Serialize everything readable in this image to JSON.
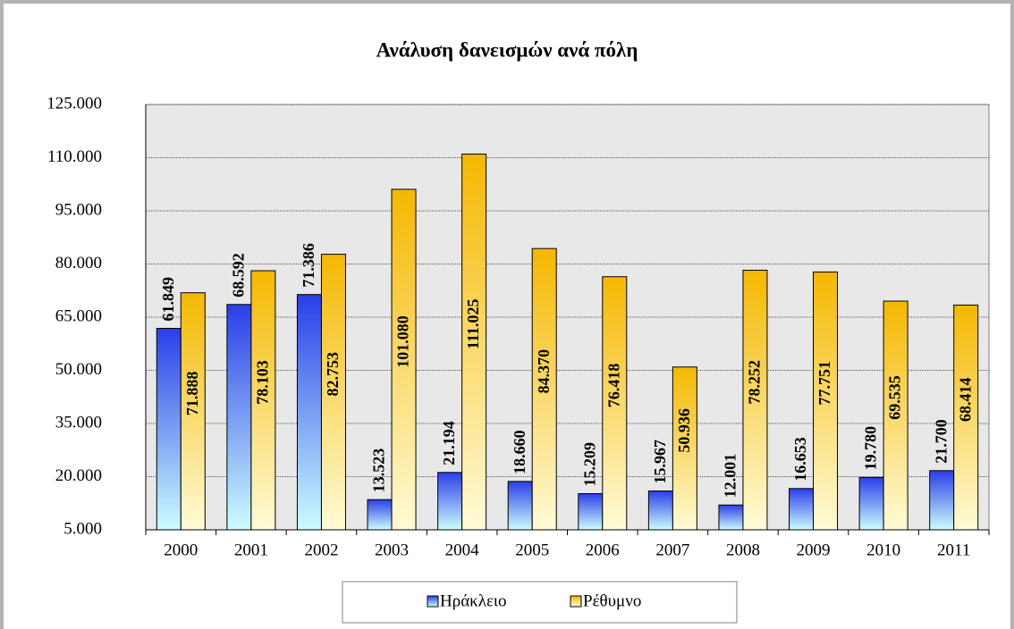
{
  "chart_data": {
    "type": "bar",
    "title": "Ανάλυση δανεισμών ανά πόλη",
    "categories": [
      "2000",
      "2001",
      "2002",
      "2003",
      "2004",
      "2005",
      "2006",
      "2007",
      "2008",
      "2009",
      "2010",
      "2011"
    ],
    "series": [
      {
        "name": "Ηράκλειο",
        "color": "#2a3ee8",
        "values": [
          61849,
          68592,
          71386,
          13523,
          21194,
          18660,
          15209,
          15967,
          12001,
          16653,
          19780,
          21700
        ],
        "value_labels": [
          "61.849",
          "68.592",
          "71.386",
          "13.523",
          "21.194",
          "18.660",
          "15.209",
          "15.967",
          "12.001",
          "16.653",
          "19.780",
          "21.700"
        ]
      },
      {
        "name": "Ρέθυμνο",
        "color": "#f5b800",
        "values": [
          71888,
          78103,
          82753,
          101080,
          111025,
          84370,
          76418,
          50936,
          78252,
          77751,
          69535,
          68414
        ],
        "value_labels": [
          "71.888",
          "78.103",
          "82.753",
          "101.080",
          "111.025",
          "84.370",
          "76.418",
          "50.936",
          "78.252",
          "77.751",
          "69.535",
          "68.414"
        ]
      }
    ],
    "ylim": [
      5000,
      125000
    ],
    "yticks": [
      {
        "value": 5000,
        "label": "5.000"
      },
      {
        "value": 20000,
        "label": "20.000"
      },
      {
        "value": 35000,
        "label": "35.000"
      },
      {
        "value": 50000,
        "label": "50.000"
      },
      {
        "value": 65000,
        "label": "65.000"
      },
      {
        "value": 80000,
        "label": "80.000"
      },
      {
        "value": 95000,
        "label": "95.000"
      },
      {
        "value": 110000,
        "label": "110.000"
      },
      {
        "value": 125000,
        "label": "125.000"
      }
    ],
    "grid": true,
    "legend": "bottom"
  }
}
